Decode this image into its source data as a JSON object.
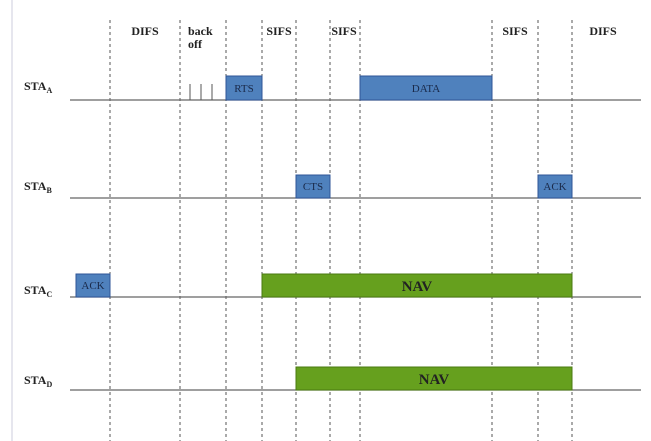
{
  "header": {
    "intervals": [
      {
        "lines": [
          "DIFS"
        ]
      },
      {
        "lines": [
          "back",
          "off"
        ]
      },
      {
        "lines": [
          "SIFS"
        ]
      },
      {
        "lines": [
          "SIFS"
        ]
      },
      {
        "lines": [
          "SIFS"
        ]
      },
      {
        "lines": [
          "DIFS"
        ]
      }
    ]
  },
  "stations": [
    {
      "name": "STA",
      "subscript": "A",
      "frames": [
        "RTS",
        "DATA"
      ]
    },
    {
      "name": "STA",
      "subscript": "B",
      "frames": [
        "CTS",
        "ACK"
      ]
    },
    {
      "name": "STA",
      "subscript": "C",
      "frames": [
        "ACK",
        "NAV"
      ]
    },
    {
      "name": "STA",
      "subscript": "D",
      "frames": [
        "NAV"
      ]
    }
  ]
}
